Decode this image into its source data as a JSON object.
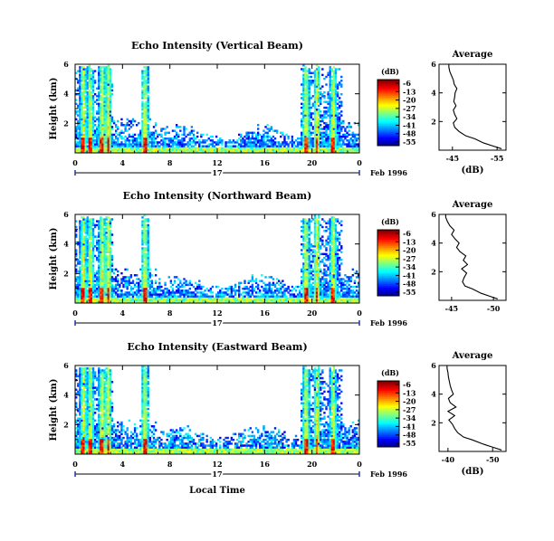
{
  "chart_data": [
    {
      "type": "heatmap",
      "title": "Echo Intensity (Vertical Beam)",
      "ylabel": "Height (km)",
      "x_ticks": [
        "0",
        "4",
        "8",
        "12",
        "16",
        "20",
        "0"
      ],
      "x_range": [
        0,
        24
      ],
      "y_ticks": [
        "2",
        "4",
        "6"
      ],
      "y_range": [
        0,
        6
      ],
      "day_label": "17",
      "date_label": "Feb 1996",
      "colorbar": {
        "unit": "(dB)",
        "levels": [
          "-6",
          "-13",
          "-20",
          "-27",
          "-34",
          "-41",
          "-48",
          "-55"
        ]
      },
      "convective_bursts_hours": [
        0.7,
        1.3,
        2.3,
        2.8,
        5.9,
        19.5,
        20.4,
        21.8
      ],
      "average_profile": {
        "title": "Average",
        "xlabel": "(dB)",
        "x_ticks": [
          "-45",
          "-55"
        ],
        "x_range": [
          -42,
          -57
        ],
        "y_ticks": [
          "2",
          "4",
          "6"
        ],
        "height_km": [
          0.1,
          0.3,
          0.5,
          0.8,
          1.0,
          1.3,
          1.6,
          1.9,
          2.2,
          2.5,
          2.8,
          3.1,
          3.4,
          3.7,
          4.0,
          4.3,
          4.6,
          4.9,
          5.2,
          5.5,
          5.8,
          6.0
        ],
        "value_db": [
          -56,
          -54,
          -52,
          -50,
          -48,
          -46.5,
          -45.5,
          -45.2,
          -46,
          -45.5,
          -45.2,
          -45.8,
          -45.3,
          -45.5,
          -45.6,
          -46,
          -45.4,
          -45.2,
          -44.8,
          -44.4,
          -44.2,
          -44.2
        ]
      }
    },
    {
      "type": "heatmap",
      "title": "Echo Intensity (Northward Beam)",
      "ylabel": "Height (km)",
      "x_ticks": [
        "0",
        "4",
        "8",
        "12",
        "16",
        "20",
        "0"
      ],
      "x_range": [
        0,
        24
      ],
      "y_ticks": [
        "2",
        "4",
        "6"
      ],
      "y_range": [
        0,
        6
      ],
      "day_label": "17",
      "date_label": "Feb 1996",
      "colorbar": {
        "unit": "(dB)",
        "levels": [
          "-6",
          "-13",
          "-20",
          "-27",
          "-34",
          "-41",
          "-48",
          "-55"
        ]
      },
      "convective_bursts_hours": [
        0.7,
        1.3,
        2.3,
        2.8,
        5.9,
        19.5,
        20.4,
        21.8
      ],
      "average_profile": {
        "title": "Average",
        "xlabel": "",
        "x_ticks": [
          "-45",
          "-50"
        ],
        "x_range": [
          -43.5,
          -51.5
        ],
        "y_ticks": [
          "2",
          "4",
          "6"
        ],
        "height_km": [
          0.1,
          0.3,
          0.5,
          0.8,
          1.0,
          1.3,
          1.6,
          1.9,
          2.2,
          2.5,
          2.8,
          3.1,
          3.4,
          3.7,
          4.0,
          4.3,
          4.6,
          4.9,
          5.2,
          5.5,
          5.8,
          6.0
        ],
        "value_db": [
          -50.5,
          -49.5,
          -48.5,
          -47.5,
          -46.6,
          -46.3,
          -46.5,
          -46.8,
          -46.2,
          -46.9,
          -46.4,
          -46.7,
          -46.0,
          -45.6,
          -45.9,
          -45.4,
          -45.0,
          -45.3,
          -44.8,
          -44.5,
          -44.3,
          -44.3
        ]
      }
    },
    {
      "type": "heatmap",
      "title": "Echo Intensity (Eastward Beam)",
      "ylabel": "Height (km)",
      "xlabel": "Local Time",
      "x_ticks": [
        "0",
        "4",
        "8",
        "12",
        "16",
        "20",
        "0"
      ],
      "x_range": [
        0,
        24
      ],
      "y_ticks": [
        "2",
        "4",
        "6"
      ],
      "y_range": [
        0,
        6
      ],
      "day_label": "17",
      "date_label": "Feb 1996",
      "colorbar": {
        "unit": "(dB)",
        "levels": [
          "-6",
          "-13",
          "-20",
          "-27",
          "-34",
          "-41",
          "-48",
          "-55"
        ]
      },
      "convective_bursts_hours": [
        0.7,
        1.3,
        2.3,
        2.8,
        5.9,
        19.5,
        20.4,
        21.8
      ],
      "average_profile": {
        "title": "Average",
        "xlabel": "(dB)",
        "x_ticks": [
          "-40",
          "-50"
        ],
        "x_range": [
          -38,
          -53
        ],
        "y_ticks": [
          "2",
          "4",
          "6"
        ],
        "height_km": [
          0.1,
          0.3,
          0.5,
          0.8,
          1.0,
          1.3,
          1.6,
          1.9,
          2.2,
          2.5,
          2.8,
          3.1,
          3.4,
          3.7,
          4.0,
          4.3,
          4.6,
          4.9,
          5.2,
          5.5,
          5.8,
          6.0
        ],
        "value_db": [
          -52,
          -50,
          -48,
          -45.5,
          -43.5,
          -42.2,
          -41.5,
          -41.0,
          -40.2,
          -41.5,
          -40.0,
          -41.8,
          -40.5,
          -40.1,
          -41.2,
          -40.8,
          -40.5,
          -40.3,
          -40.1,
          -40.0,
          -39.8,
          -39.8
        ]
      }
    }
  ]
}
